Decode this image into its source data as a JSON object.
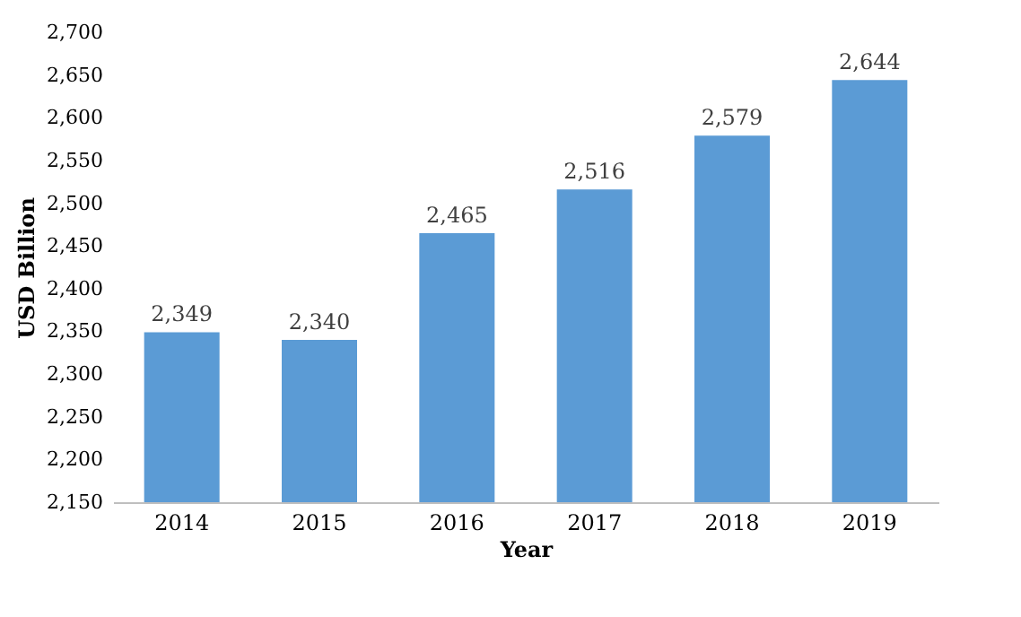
{
  "chart_data": {
    "type": "bar",
    "xlabel": "Year",
    "ylabel": "USD Billion",
    "categories": [
      "2014",
      "2015",
      "2016",
      "2017",
      "2018",
      "2019"
    ],
    "values": [
      2349,
      2340,
      2465,
      2516,
      2579,
      2644
    ],
    "value_labels": [
      "2,349",
      "2,340",
      "2,465",
      "2,516",
      "2,579",
      "2,644"
    ],
    "color": "#5b9bd5",
    "ylim": [
      2150,
      2700
    ],
    "yticks": [
      {
        "value": 2150,
        "label": "2,150"
      },
      {
        "value": 2200,
        "label": "2,200"
      },
      {
        "value": 2250,
        "label": "2,250"
      },
      {
        "value": 2300,
        "label": "2,300"
      },
      {
        "value": 2350,
        "label": "2,350"
      },
      {
        "value": 2400,
        "label": "2,400"
      },
      {
        "value": 2450,
        "label": "2,450"
      },
      {
        "value": 2500,
        "label": "2,500"
      },
      {
        "value": 2550,
        "label": "2,550"
      },
      {
        "value": 2600,
        "label": "2,600"
      },
      {
        "value": 2650,
        "label": "2,650"
      },
      {
        "value": 2700,
        "label": "2,700"
      }
    ],
    "grid": false
  }
}
